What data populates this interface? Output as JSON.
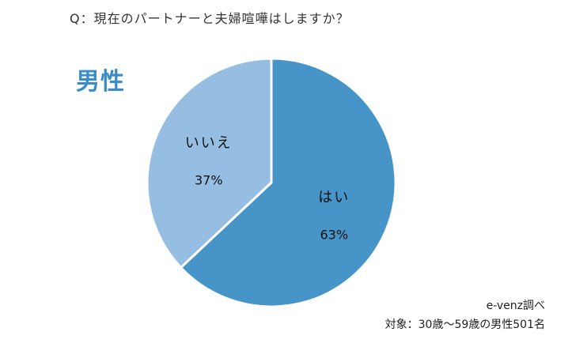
{
  "question": "Q：現在のパートナーと夫婦喧嘩はしますか？",
  "subtitle": "男性",
  "source": "e-venz調べ",
  "subject": "対象：30歳～59歳の男性501名",
  "colors": {
    "accent": "#3a8cc8",
    "yes": "#4795c8",
    "no": "#96bee3"
  },
  "chart_data": {
    "type": "pie",
    "title": "Q：現在のパートナーと夫婦喧嘩はしますか？",
    "categories": [
      "はい",
      "いいえ"
    ],
    "values": [
      63,
      37
    ],
    "labels": [
      "63%",
      "37%"
    ],
    "start": "top",
    "direction": "clockwise"
  }
}
